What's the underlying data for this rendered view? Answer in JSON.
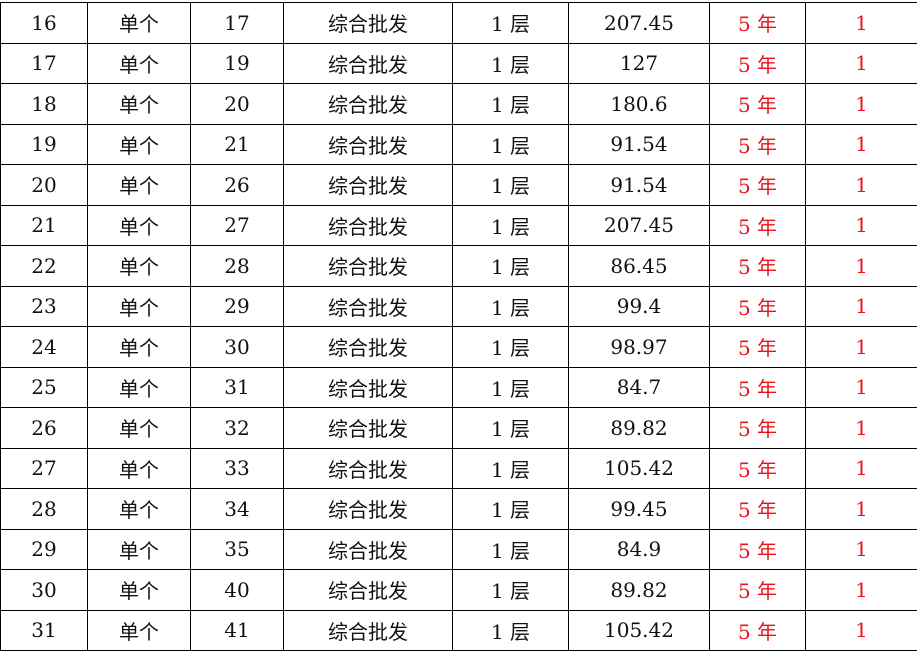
{
  "colors": {
    "text": "#111111",
    "accent_red": "#e8141e",
    "border": "#000000"
  },
  "red_columns": [
    6,
    7
  ],
  "rows": [
    [
      "16",
      "单个",
      "17",
      "综合批发",
      "1 层",
      "207.45",
      "5 年",
      "1"
    ],
    [
      "17",
      "单个",
      "19",
      "综合批发",
      "1 层",
      "127",
      "5 年",
      "1"
    ],
    [
      "18",
      "单个",
      "20",
      "综合批发",
      "1 层",
      "180.6",
      "5 年",
      "1"
    ],
    [
      "19",
      "单个",
      "21",
      "综合批发",
      "1 层",
      "91.54",
      "5 年",
      "1"
    ],
    [
      "20",
      "单个",
      "26",
      "综合批发",
      "1 层",
      "91.54",
      "5 年",
      "1"
    ],
    [
      "21",
      "单个",
      "27",
      "综合批发",
      "1 层",
      "207.45",
      "5 年",
      "1"
    ],
    [
      "22",
      "单个",
      "28",
      "综合批发",
      "1 层",
      "86.45",
      "5 年",
      "1"
    ],
    [
      "23",
      "单个",
      "29",
      "综合批发",
      "1 层",
      "99.4",
      "5 年",
      "1"
    ],
    [
      "24",
      "单个",
      "30",
      "综合批发",
      "1 层",
      "98.97",
      "5 年",
      "1"
    ],
    [
      "25",
      "单个",
      "31",
      "综合批发",
      "1 层",
      "84.7",
      "5 年",
      "1"
    ],
    [
      "26",
      "单个",
      "32",
      "综合批发",
      "1 层",
      "89.82",
      "5 年",
      "1"
    ],
    [
      "27",
      "单个",
      "33",
      "综合批发",
      "1 层",
      "105.42",
      "5 年",
      "1"
    ],
    [
      "28",
      "单个",
      "34",
      "综合批发",
      "1 层",
      "99.45",
      "5 年",
      "1"
    ],
    [
      "29",
      "单个",
      "35",
      "综合批发",
      "1 层",
      "84.9",
      "5 年",
      "1"
    ],
    [
      "30",
      "单个",
      "40",
      "综合批发",
      "1 层",
      "89.82",
      "5 年",
      "1"
    ],
    [
      "31",
      "单个",
      "41",
      "综合批发",
      "1 层",
      "105.42",
      "5 年",
      "1"
    ]
  ]
}
